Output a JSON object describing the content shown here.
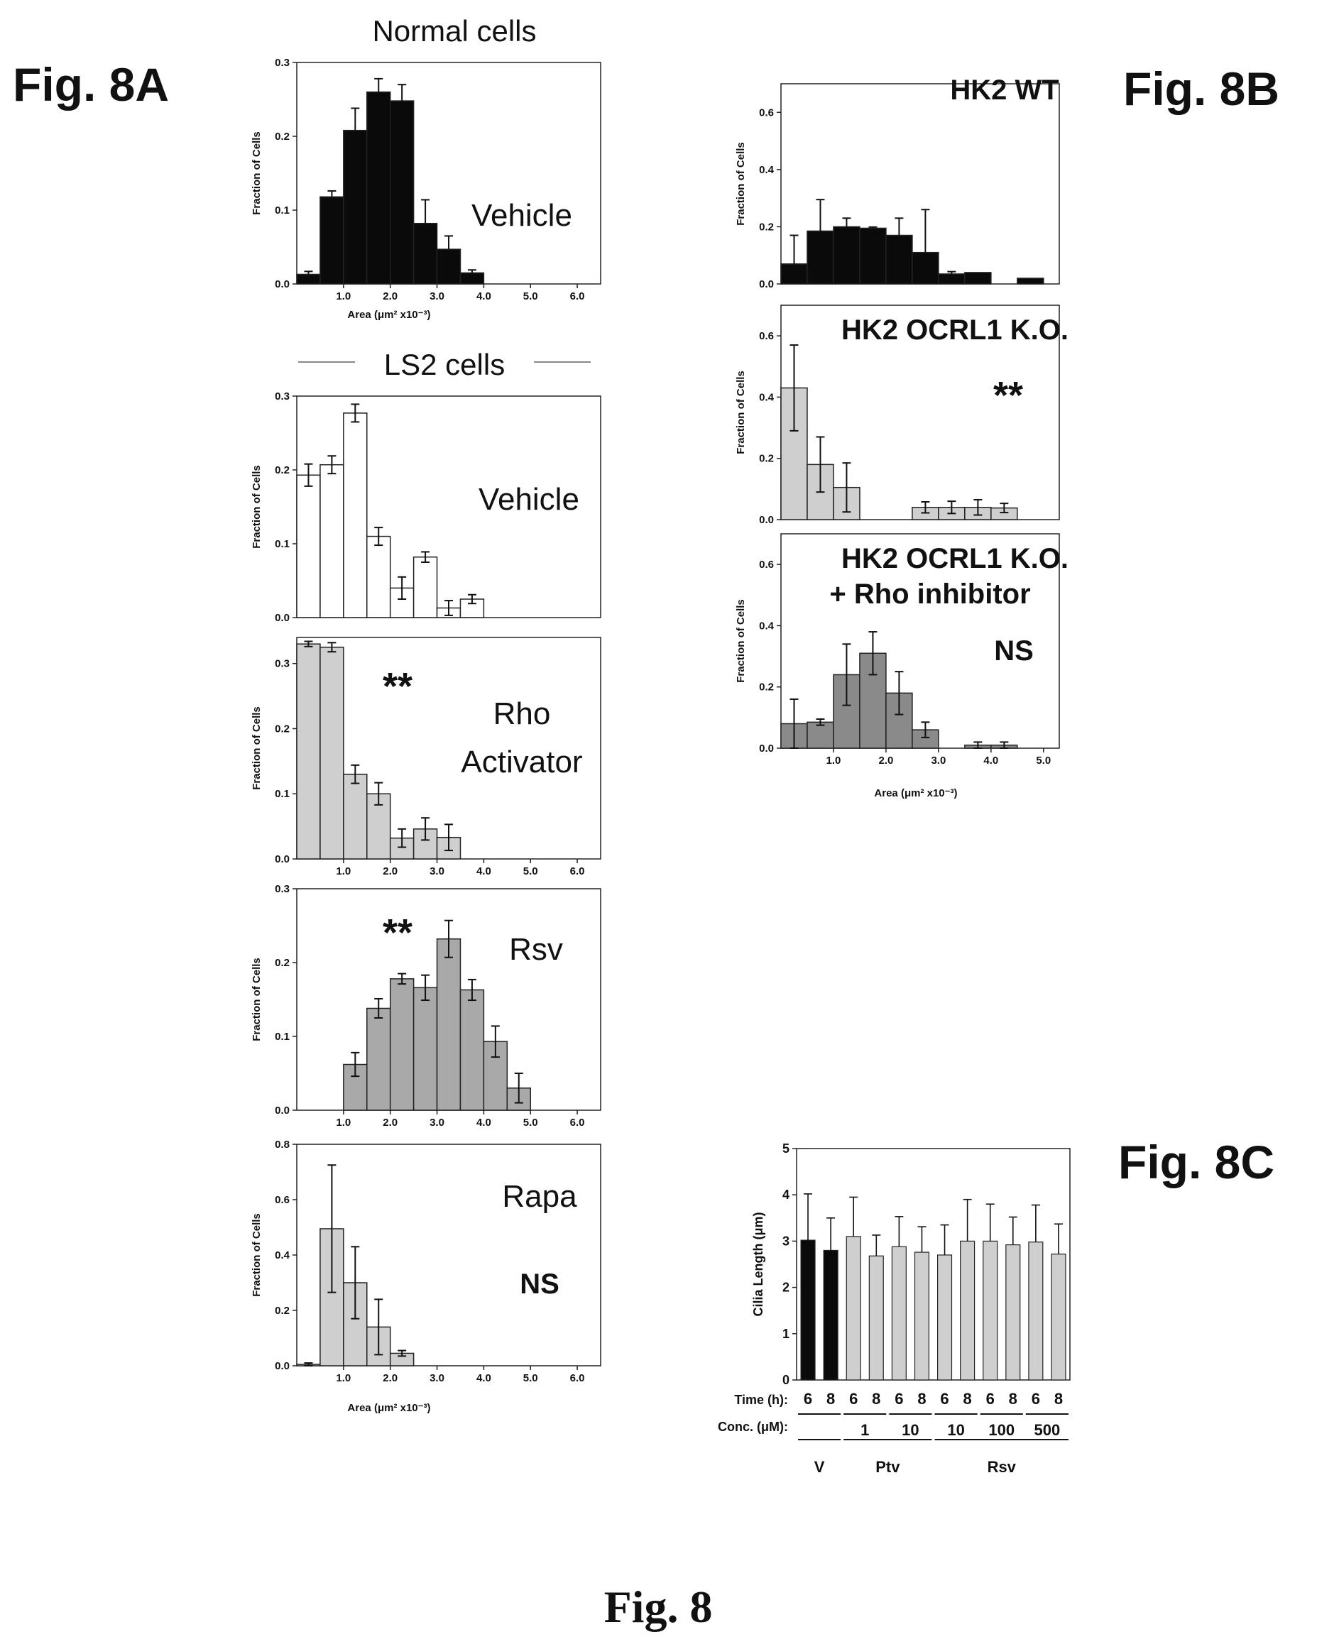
{
  "figure": {
    "label_a": "Fig. 8A",
    "label_b": "Fig. 8B",
    "label_c": "Fig. 8C",
    "caption": "Fig. 8"
  },
  "colors": {
    "black_bar": "#0a0a0a",
    "light_gray_bar": "#cfcfcf",
    "mid_gray_bar": "#a9a9a9",
    "dark_gray_bar": "#8a8a8a",
    "white_bar": "#ffffff"
  },
  "chart_data": [
    {
      "id": "a1",
      "type": "bar",
      "title": "Normal cells",
      "annotations": [
        "Vehicle"
      ],
      "ylabel": "Fraction of Cells",
      "xlabel": "Area (μm² x10⁻³)",
      "ylim": [
        0,
        0.3
      ],
      "yticks": [
        "0.0",
        "0.1",
        "0.2",
        "0.3"
      ],
      "xticks": [
        "1.0",
        "2.0",
        "3.0",
        "4.0",
        "5.0",
        "6.0"
      ],
      "xlim": [
        0,
        6.5
      ],
      "fill": "black",
      "bin_start": 0,
      "bin_width": 0.5,
      "values": [
        0.013,
        0.118,
        0.208,
        0.26,
        0.248,
        0.082,
        0.047,
        0.015
      ],
      "errors": [
        0.004,
        0.008,
        0.03,
        0.018,
        0.022,
        0.032,
        0.018,
        0.004
      ]
    },
    {
      "id": "a2",
      "type": "bar",
      "title": "LS2 cells",
      "annotations": [
        "Vehicle"
      ],
      "ylabel": "Fraction of Cells",
      "xlabel": "",
      "ylim": [
        0,
        0.3
      ],
      "yticks": [
        "0.0",
        "0.1",
        "0.2",
        "0.3"
      ],
      "xticks": [],
      "xlim": [
        0,
        6.5
      ],
      "fill": "white",
      "bin_start": 0,
      "bin_width": 0.5,
      "values": [
        0.193,
        0.207,
        0.277,
        0.11,
        0.04,
        0.082,
        0.013,
        0.025
      ],
      "errors": [
        0.015,
        0.012,
        0.012,
        0.012,
        0.015,
        0.007,
        0.01,
        0.006
      ]
    },
    {
      "id": "a3",
      "type": "bar",
      "significance": "**",
      "annotations": [
        "Rho",
        "Activator"
      ],
      "ylabel": "Fraction of Cells",
      "xlabel": "",
      "ylim": [
        0,
        0.34
      ],
      "yticks": [
        "0.0",
        "0.1",
        "0.2",
        "0.3"
      ],
      "xticks": [
        "1.0",
        "2.0",
        "3.0",
        "4.0",
        "5.0",
        "6.0"
      ],
      "xlim": [
        0,
        6.5
      ],
      "fill": "light",
      "bin_start": 0,
      "bin_width": 0.5,
      "values": [
        0.33,
        0.325,
        0.13,
        0.1,
        0.032,
        0.046,
        0.033
      ],
      "errors": [
        0.004,
        0.007,
        0.014,
        0.017,
        0.014,
        0.017,
        0.02
      ]
    },
    {
      "id": "a4",
      "type": "bar",
      "significance": "**",
      "annotations": [
        "Rsv"
      ],
      "ylabel": "Fraction of Cells",
      "xlabel": "",
      "ylim": [
        0,
        0.3
      ],
      "yticks": [
        "0.0",
        "0.1",
        "0.2",
        "0.3"
      ],
      "xticks": [
        "1.0",
        "2.0",
        "3.0",
        "4.0",
        "5.0",
        "6.0"
      ],
      "xlim": [
        0,
        6.5
      ],
      "fill": "mid",
      "bin_start": 1.0,
      "bin_width": 0.5,
      "values": [
        0.062,
        0.138,
        0.178,
        0.166,
        0.232,
        0.163,
        0.093,
        0.03
      ],
      "errors": [
        0.016,
        0.013,
        0.007,
        0.017,
        0.025,
        0.014,
        0.021,
        0.02
      ]
    },
    {
      "id": "a5",
      "type": "bar",
      "significance": "NS",
      "annotations": [
        "Rapa"
      ],
      "ylabel": "Fraction of Cells",
      "xlabel": "Area (μm² x10⁻³)",
      "ylim": [
        0,
        0.8
      ],
      "yticks": [
        "0.0",
        "0.2",
        "0.4",
        "0.6",
        "0.8"
      ],
      "xticks": [
        "1.0",
        "2.0",
        "3.0",
        "4.0",
        "5.0",
        "6.0"
      ],
      "xlim": [
        0,
        6.5
      ],
      "fill": "light",
      "bin_start": 0,
      "bin_width": 0.5,
      "values": [
        0.005,
        0.495,
        0.3,
        0.14,
        0.045
      ],
      "errors": [
        0.005,
        0.23,
        0.13,
        0.1,
        0.01
      ]
    },
    {
      "id": "b1",
      "type": "bar",
      "annotations": [
        "HK2 WT"
      ],
      "ylabel": "Fraction of Cells",
      "xlabel": "",
      "ylim": [
        0,
        0.7
      ],
      "yticks": [
        "0.0",
        "0.2",
        "0.4",
        "0.6"
      ],
      "xticks": [],
      "xlim": [
        0,
        5.3
      ],
      "fill": "black",
      "bin_start": 0,
      "bin_width": 0.5,
      "values": [
        0.07,
        0.185,
        0.2,
        0.195,
        0.17,
        0.11,
        0.035,
        0.04,
        0,
        0.02
      ],
      "errors": [
        0.1,
        0.11,
        0.03,
        0.004,
        0.06,
        0.15,
        0.008,
        0,
        0,
        0
      ]
    },
    {
      "id": "b2",
      "type": "bar",
      "annotations": [
        "HK2 OCRL1 K.O."
      ],
      "significance": "**",
      "ylabel": "Fraction of Cells",
      "xlabel": "",
      "ylim": [
        0,
        0.7
      ],
      "yticks": [
        "0.0",
        "0.2",
        "0.4",
        "0.6"
      ],
      "xticks": [],
      "xlim": [
        0,
        5.3
      ],
      "fill": "light",
      "bin_start": 0,
      "bin_width": 0.5,
      "values": [
        0.43,
        0.18,
        0.105,
        0,
        0,
        0.04,
        0.04,
        0.04,
        0.038
      ],
      "errors": [
        0.14,
        0.09,
        0.08,
        0,
        0,
        0.018,
        0.02,
        0.025,
        0.015
      ]
    },
    {
      "id": "b3",
      "type": "bar",
      "annotations": [
        "HK2 OCRL1 K.O.",
        "+ Rho inhibitor"
      ],
      "significance": "NS",
      "ylabel": "Fraction of Cells",
      "xlabel": "Area (μm² x10⁻³)",
      "ylim": [
        0,
        0.7
      ],
      "yticks": [
        "0.0",
        "0.2",
        "0.4",
        "0.6"
      ],
      "xticks": [
        "1.0",
        "2.0",
        "3.0",
        "4.0",
        "5.0"
      ],
      "xlim": [
        0,
        5.3
      ],
      "fill": "dark",
      "bin_start": 0,
      "bin_width": 0.5,
      "values": [
        0.08,
        0.085,
        0.24,
        0.31,
        0.18,
        0.06,
        0,
        0.01,
        0.01
      ],
      "errors": [
        0.08,
        0.01,
        0.1,
        0.07,
        0.07,
        0.025,
        0,
        0.01,
        0.01
      ]
    },
    {
      "id": "c1",
      "type": "bar",
      "ylabel": "Cilia Length (μm)",
      "ylim": [
        0,
        5
      ],
      "yticks": [
        "0",
        "1",
        "2",
        "3",
        "4",
        "5"
      ],
      "categories": [
        "6",
        "8",
        "6",
        "8",
        "6",
        "8",
        "6",
        "8",
        "6",
        "8",
        "6",
        "8"
      ],
      "values": [
        3.02,
        2.8,
        3.1,
        2.68,
        2.88,
        2.76,
        2.7,
        3.0,
        3.0,
        2.92,
        2.98,
        2.72
      ],
      "errors": [
        1.0,
        0.7,
        0.85,
        0.45,
        0.65,
        0.55,
        0.65,
        0.9,
        0.8,
        0.6,
        0.8,
        0.65
      ],
      "bar_fills": [
        "black",
        "black",
        "light",
        "light",
        "light",
        "light",
        "light",
        "light",
        "light",
        "light",
        "light",
        "light"
      ],
      "row_labels": [
        "Time (h):",
        "Conc. (μM):"
      ],
      "conc_labels": [
        "1",
        "10",
        "10",
        "100",
        "500"
      ],
      "groups": [
        "V",
        "Ptv",
        "Rsv"
      ]
    }
  ]
}
